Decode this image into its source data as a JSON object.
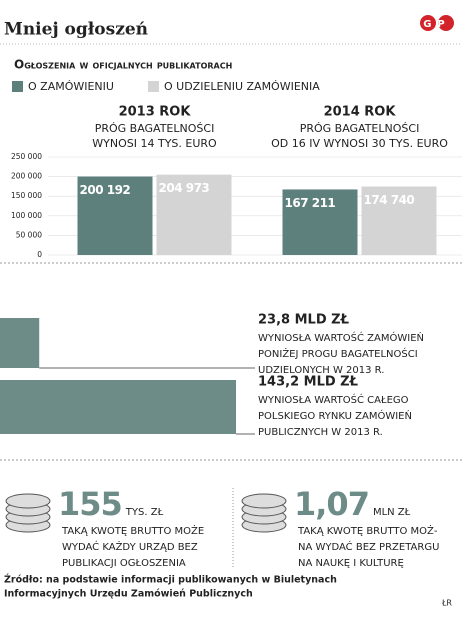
{
  "header": {
    "title": "Mniej ogłoszeń",
    "logo": "GP"
  },
  "chart_data": [
    {
      "type": "bar",
      "title": "Ogłoszenia w oficjalnych publikatorach",
      "categories": [
        "2013 ROK",
        "2014 ROK"
      ],
      "category_notes": [
        [
          "PRÓG BAGATELNOŚCI",
          "WYNOSI 14 TYS. EURO"
        ],
        [
          "PRÓG BAGATELNOŚCI",
          "OD 16 IV WYNOSI 30 TYS. EURO"
        ]
      ],
      "series": [
        {
          "name": "O ZAMÓWIENIU",
          "color": "#5e807c",
          "values": [
            200192,
            167211
          ],
          "value_labels": [
            "200 192",
            "167 211"
          ]
        },
        {
          "name": "O UDZIELENIU ZAMÓWIENIA",
          "color": "#d4d4d4",
          "values": [
            204973,
            174740
          ],
          "value_labels": [
            "204 973",
            "174 740"
          ]
        }
      ],
      "ylim": [
        0,
        250000
      ],
      "yticks": [
        0,
        {
          "value": 50000,
          "label": "50 000"
        },
        {
          "value": 100000,
          "label": "100 000"
        },
        {
          "value": 150000,
          "label": "150 000"
        },
        {
          "value": 200000,
          "label": "200 000"
        },
        {
          "value": 250000,
          "label": "250 000"
        }
      ],
      "grid": true
    },
    {
      "type": "hbar",
      "color": "#6d8b87",
      "values": [
        23.8,
        143.2
      ],
      "value_labels": [
        "23,8 MLD ZŁ",
        "143,2 MLD ZŁ"
      ],
      "descriptions": [
        [
          "WYNIOSŁA WARTOŚĆ ZAMÓWIEŃ",
          "PONIŻEJ PROGU BAGATELNOŚCI",
          "UDZIELONYCH W 2013 R."
        ],
        [
          "WYNIOSŁA WARTOŚĆ CAŁEGO",
          "POLSKIEGO RYNKU ZAMÓWIEŃ",
          "PUBLICZNYCH W 2013 R."
        ]
      ]
    }
  ],
  "facts": [
    {
      "number": "155",
      "unit": "TYS. ZŁ",
      "lines": [
        "TAKĄ KWOTĘ BRUTTO MOŻE",
        "WYDAĆ KAŻDY URZĄD BEZ",
        "PUBLIKACJI OGŁOSZENIA"
      ]
    },
    {
      "number": "1,07",
      "unit": "MLN ZŁ",
      "lines": [
        "TAKĄ KWOTĘ BRUTTO MOŻ-",
        "NA WYDAĆ BEZ PRZETARGU",
        "NA NAUKĘ I KULTURĘ"
      ]
    }
  ],
  "source": [
    "Źródło: na podstawie informacji publikowanych w Biuletynach",
    "Informacyjnych Urzędu Zamówień Publicznych"
  ],
  "credit": "ŁR"
}
